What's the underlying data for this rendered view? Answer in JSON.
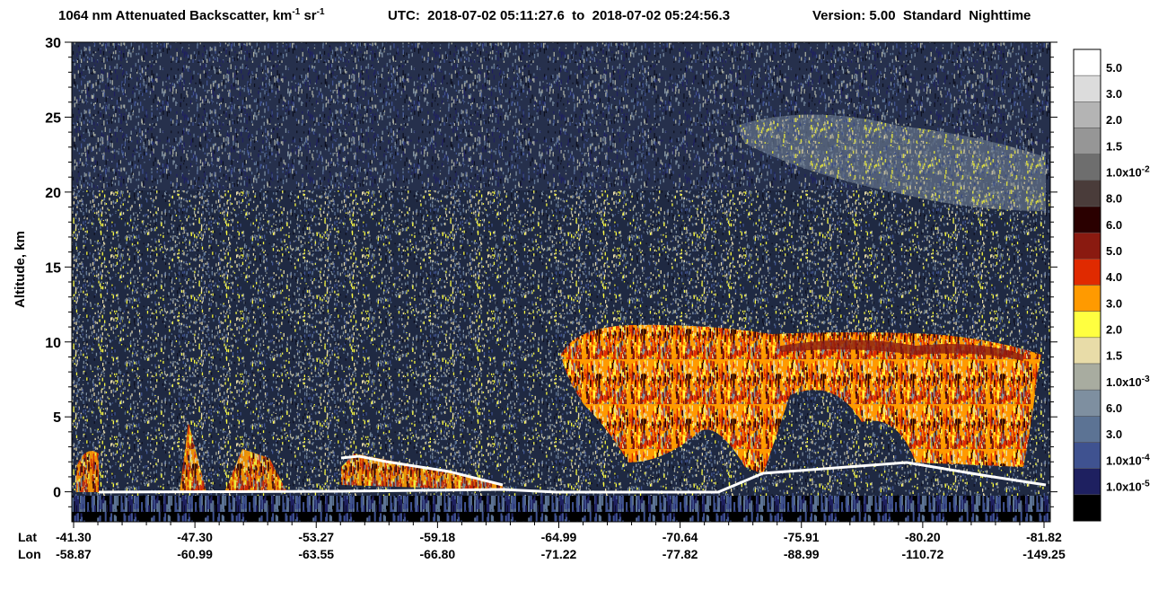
{
  "chart_data": {
    "type": "curtain",
    "title": {
      "text": "1064 nm Attenuated Backscatter, km",
      "exp1": "-1",
      "unit2": " sr",
      "exp2": "-1"
    },
    "utc": "UTC:  2018-07-02 05:11:27.6  to  2018-07-02 05:24:56.3",
    "version": "Version: 5.00  Standard  Nighttime",
    "y_label": "Altitude, km",
    "ylim": [
      -2,
      30
    ],
    "yticks": [
      0,
      5,
      10,
      15,
      20,
      25,
      30
    ],
    "x_row_labels": {
      "lat": "Lat",
      "lon": "Lon"
    },
    "x_ticks": [
      {
        "lat": "-41.30",
        "lon": "-58.87"
      },
      {
        "lat": "-47.30",
        "lon": "-60.99"
      },
      {
        "lat": "-53.27",
        "lon": "-63.55"
      },
      {
        "lat": "-59.18",
        "lon": "-66.80"
      },
      {
        "lat": "-64.99",
        "lon": "-71.22"
      },
      {
        "lat": "-70.64",
        "lon": "-77.82"
      },
      {
        "lat": "-75.91",
        "lon": "-88.99"
      },
      {
        "lat": "-80.20",
        "lon": "-110.72"
      },
      {
        "lat": "-81.82",
        "lon": "-149.25"
      }
    ],
    "colorbar": [
      {
        "color": "#ffffff",
        "label": "5.0"
      },
      {
        "color": "#dcdcdc",
        "label": "3.0"
      },
      {
        "color": "#b4b4b4",
        "label": "2.0"
      },
      {
        "color": "#969696",
        "label": "1.5"
      },
      {
        "color": "#6e6e6e",
        "label": "1.0x10",
        "exp": "-2"
      },
      {
        "color": "#4a3c3a",
        "label": "8.0"
      },
      {
        "color": "#2a0000",
        "label": "6.0"
      },
      {
        "color": "#8a1a10",
        "label": "5.0"
      },
      {
        "color": "#e02a00",
        "label": "4.0"
      },
      {
        "color": "#ff9a00",
        "label": "3.0"
      },
      {
        "color": "#ffff40",
        "label": "2.0"
      },
      {
        "color": "#e8dca8",
        "label": "1.5"
      },
      {
        "color": "#a8aca0",
        "label": "1.0x10",
        "exp": "-3"
      },
      {
        "color": "#7e8fa0",
        "label": "6.0"
      },
      {
        "color": "#5c7394",
        "label": "3.0"
      },
      {
        "color": "#3f5290",
        "label": "1.0x10",
        "exp": "-4"
      },
      {
        "color": "#1e2060",
        "label": "1.0x10",
        "exp": "-5"
      },
      {
        "color": "#000000"
      }
    ]
  }
}
